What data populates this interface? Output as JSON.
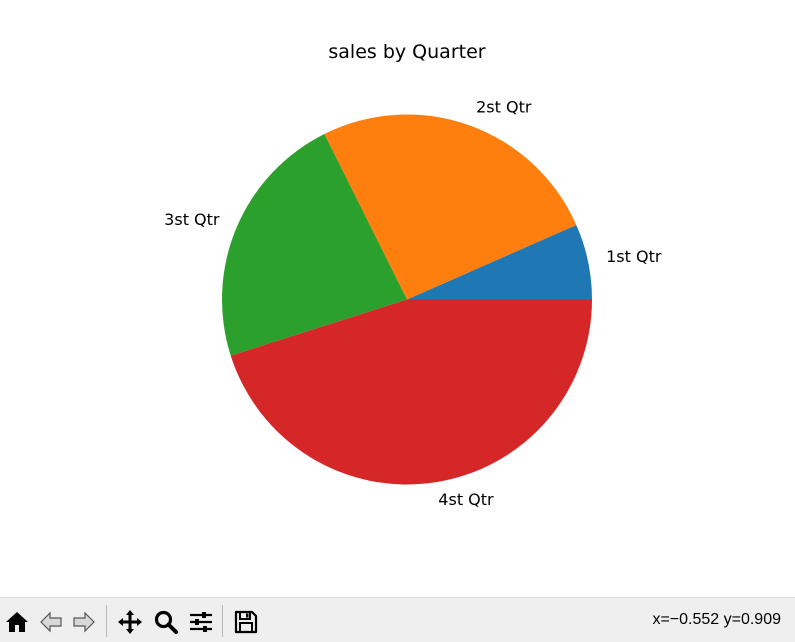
{
  "chart_data": {
    "type": "pie",
    "title": "sales by Quarter",
    "categories": [
      "1st Qtr",
      "2st Qtr",
      "3st Qtr",
      "4st Qtr"
    ],
    "values": [
      8.2,
      32,
      28,
      56
    ],
    "colors": [
      "#1f77b4",
      "#ff7f0e",
      "#2ca02c",
      "#d62728"
    ],
    "start_angle": 0,
    "direction": "counterclockwise",
    "legend": "none"
  },
  "toolbar": {
    "buttons": [
      {
        "name": "home",
        "icon": "home-icon"
      },
      {
        "name": "back",
        "icon": "back-arrow-icon"
      },
      {
        "name": "forward",
        "icon": "forward-arrow-icon"
      },
      {
        "name": "pan",
        "icon": "move-icon"
      },
      {
        "name": "zoom",
        "icon": "zoom-icon"
      },
      {
        "name": "configure-subplots",
        "icon": "sliders-icon"
      },
      {
        "name": "save",
        "icon": "save-icon"
      }
    ],
    "coordinates": "x=−0.552 y=0.909"
  }
}
